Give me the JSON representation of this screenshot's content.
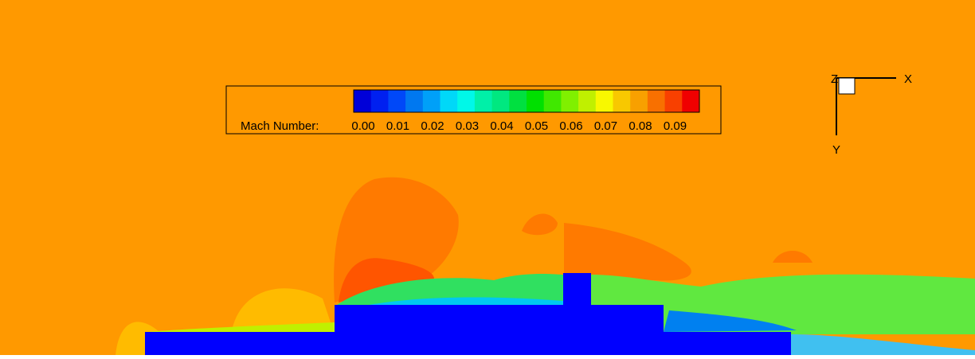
{
  "colorbar": {
    "label": "Mach Number:",
    "ticks": [
      {
        "value": 0,
        "label": "0.00"
      },
      {
        "value": 0.01,
        "label": "0.01"
      },
      {
        "value": 0.02,
        "label": "0.02"
      },
      {
        "value": 0.03,
        "label": "0.03"
      },
      {
        "value": 0.04,
        "label": "0.04"
      },
      {
        "value": 0.05,
        "label": "0.05"
      },
      {
        "value": 0.06,
        "label": "0.06"
      },
      {
        "value": 0.07,
        "label": "0.07"
      },
      {
        "value": 0.08,
        "label": "0.08"
      },
      {
        "value": 0.09,
        "label": "0.09"
      }
    ],
    "colors": [
      "#0000d8",
      "#0020f0",
      "#0048f8",
      "#0078f0",
      "#00a0f8",
      "#00d8f8",
      "#00f8e8",
      "#00f0a8",
      "#00e880",
      "#00e040",
      "#00e000",
      "#40e800",
      "#80f000",
      "#c0f000",
      "#f8f800",
      "#f8c800",
      "#f8a000",
      "#f87000",
      "#f84000",
      "#f00000"
    ]
  },
  "axes": {
    "z": "Z",
    "x": "X",
    "y": "Y"
  }
}
